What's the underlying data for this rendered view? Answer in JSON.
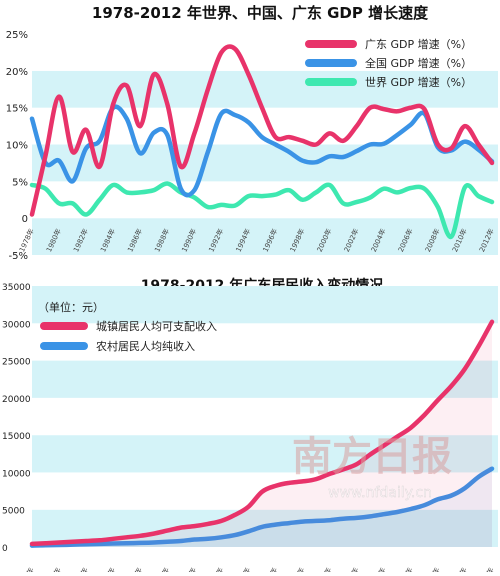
{
  "chart_data": [
    {
      "type": "line",
      "title": "1978-2012 年世界、中国、广东 GDP 增长速度",
      "ylim": [
        -5,
        25
      ],
      "y_ticks": [
        "25%",
        "20%",
        "15%",
        "10%",
        "5%",
        "0",
        "-5%"
      ],
      "y_tick_values": [
        25,
        20,
        15,
        10,
        5,
        0,
        -5
      ],
      "x_ticks": [
        "1978年",
        "1980年",
        "1982年",
        "1984年",
        "1986年",
        "1988年",
        "1990年",
        "1992年",
        "1994年",
        "1996年",
        "1998年",
        "2000年",
        "2002年",
        "2004年",
        "2006年",
        "2008年",
        "2010年",
        "2012年"
      ],
      "x": [
        1978,
        1979,
        1980,
        1981,
        1982,
        1983,
        1984,
        1985,
        1986,
        1987,
        1988,
        1989,
        1990,
        1991,
        1992,
        1993,
        1994,
        1995,
        1996,
        1997,
        1998,
        1999,
        2000,
        2001,
        2002,
        2003,
        2004,
        2005,
        2006,
        2007,
        2008,
        2009,
        2010,
        2011,
        2012
      ],
      "legend_position": "top-right",
      "grid_bands": true,
      "series": [
        {
          "name": "广东 GDP 增速（%）",
          "color": "#e8336a",
          "values": [
            0.5,
            8.5,
            16.5,
            9.0,
            12.0,
            7.0,
            15.5,
            18.0,
            12.5,
            19.5,
            15.5,
            7.0,
            11.5,
            17.5,
            22.5,
            23.0,
            19.5,
            15.0,
            11.0,
            11.0,
            10.5,
            10.0,
            11.5,
            10.5,
            12.5,
            15.0,
            14.8,
            14.5,
            15.0,
            14.8,
            10.0,
            9.5,
            12.5,
            10.0,
            7.5
          ]
        },
        {
          "name": "全国 GDP 增速（%）",
          "color": "#3a93e6",
          "values": [
            13.5,
            7.5,
            7.8,
            5.0,
            9.5,
            10.5,
            15.0,
            13.5,
            8.8,
            11.6,
            11.3,
            4.0,
            3.8,
            9.0,
            14.2,
            14.0,
            13.0,
            11.0,
            10.0,
            9.0,
            7.8,
            7.6,
            8.4,
            8.3,
            9.1,
            10.0,
            10.1,
            11.3,
            12.7,
            14.2,
            9.6,
            9.2,
            10.4,
            9.3,
            7.7
          ]
        },
        {
          "name": "世界 GDP 增速（%）",
          "color": "#3ee8b0",
          "values": [
            4.5,
            4.0,
            2.0,
            2.0,
            0.5,
            2.5,
            4.5,
            3.5,
            3.5,
            3.8,
            4.7,
            3.5,
            2.8,
            1.5,
            1.8,
            1.7,
            3.0,
            3.0,
            3.2,
            3.8,
            2.5,
            3.5,
            4.5,
            2.0,
            2.2,
            2.8,
            4.0,
            3.5,
            4.1,
            4.0,
            1.5,
            -2.5,
            4.2,
            3.0,
            2.2
          ]
        }
      ]
    },
    {
      "type": "area",
      "title": "1978-2012 年广东居民收入变动情况",
      "unit_label": "（单位：元）",
      "ylim": [
        0,
        35000
      ],
      "y_ticks": [
        "35000",
        "30000",
        "25000",
        "20000",
        "15000",
        "10000",
        "5000",
        "0"
      ],
      "y_tick_values": [
        35000,
        30000,
        25000,
        20000,
        15000,
        10000,
        5000,
        0
      ],
      "x_ticks": [
        "1978年",
        "1980年",
        "1982年",
        "1984年",
        "1986年",
        "1988年",
        "1990年",
        "1992年",
        "1994年",
        "1996年",
        "1998年",
        "2000年",
        "2002年",
        "2004年",
        "2006年",
        "2008年",
        "2010年",
        "2012年"
      ],
      "x": [
        1978,
        1979,
        1980,
        1981,
        1982,
        1983,
        1984,
        1985,
        1986,
        1987,
        1988,
        1989,
        1990,
        1991,
        1992,
        1993,
        1994,
        1995,
        1996,
        1997,
        1998,
        1999,
        2000,
        2001,
        2002,
        2003,
        2004,
        2005,
        2006,
        2007,
        2008,
        2009,
        2010,
        2011,
        2012
      ],
      "legend_position": "top-left",
      "grid_bands": true,
      "series": [
        {
          "name": "城镇居民人均可支配收入",
          "color": "#e8336a",
          "values": [
            412,
            500,
            600,
            700,
            800,
            900,
            1100,
            1300,
            1500,
            1800,
            2200,
            2600,
            2800,
            3100,
            3500,
            4300,
            5400,
            7400,
            8200,
            8600,
            8800,
            9100,
            9800,
            10400,
            11100,
            12400,
            13600,
            14800,
            16000,
            17700,
            19700,
            21600,
            23900,
            26900,
            30200
          ]
        },
        {
          "name": "农村居民人均纯收入",
          "color": "#3a93e6",
          "values": [
            193,
            230,
            270,
            320,
            380,
            420,
            470,
            500,
            550,
            600,
            700,
            800,
            1000,
            1100,
            1300,
            1600,
            2100,
            2700,
            3000,
            3200,
            3400,
            3500,
            3600,
            3800,
            3900,
            4100,
            4400,
            4700,
            5100,
            5600,
            6400,
            6900,
            7900,
            9400,
            10500
          ]
        }
      ]
    }
  ],
  "watermark": {
    "site": "www.nfdaily.cn",
    "logo_text": "南方日报"
  }
}
